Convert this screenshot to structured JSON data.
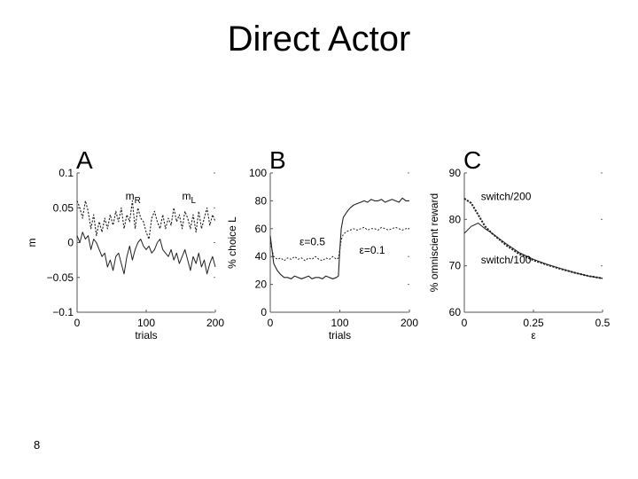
{
  "slide": {
    "title": "Direct Actor",
    "page_number": "8"
  },
  "chart_data": [
    {
      "type": "line",
      "panel": "A",
      "xlabel": "trials",
      "ylabel": "m",
      "xlim": [
        0,
        200
      ],
      "ylim": [
        -0.1,
        0.1
      ],
      "xticks": [
        0,
        100,
        200
      ],
      "xtick_labels": [
        "0",
        "100",
        "200"
      ],
      "yticks": [
        0.1,
        0.05,
        0,
        -0.05,
        -0.1
      ],
      "ytick_labels": [
        "0.1",
        "0.05",
        "0",
        "−0.05",
        "−0.1"
      ],
      "annotations": [
        {
          "text": "m",
          "sub": "R",
          "x": 70,
          "y": 0.062
        },
        {
          "text": "m",
          "sub": "L",
          "x": 152,
          "y": 0.062
        }
      ],
      "series": [
        {
          "x": [
            0,
            4,
            8,
            12,
            16,
            20,
            24,
            28,
            32,
            36,
            40,
            44,
            48,
            52,
            56,
            60,
            64,
            68,
            72,
            76,
            80,
            84,
            88,
            92,
            96,
            100,
            104,
            108,
            112,
            116,
            120,
            124,
            128,
            132,
            136,
            140,
            144,
            148,
            152,
            156,
            160,
            164,
            168,
            172,
            176,
            180,
            184,
            188,
            192,
            196,
            200
          ],
          "y": [
            0.06,
            0.05,
            0.035,
            0.06,
            0.045,
            0.02,
            0.04,
            0.01,
            0.03,
            0.015,
            0.035,
            0.02,
            0.04,
            0.025,
            0.045,
            0.03,
            0.05,
            0.02,
            0.04,
            0.03,
            0.06,
            0.02,
            0.05,
            0.035,
            0.03,
            0.015,
            0.005,
            0.035,
            0.045,
            0.03,
            0.02,
            0.04,
            0.02,
            0.035,
            0.025,
            0.05,
            0.03,
            0.04,
            0.02,
            0.045,
            0.035,
            0.02,
            0.04,
            0.015,
            0.045,
            0.02,
            0.035,
            0.05,
            0.025,
            0.04,
            0.03
          ]
        },
        {
          "x": [
            0,
            4,
            8,
            12,
            16,
            20,
            24,
            28,
            32,
            36,
            40,
            44,
            48,
            52,
            56,
            60,
            64,
            68,
            72,
            76,
            80,
            84,
            88,
            92,
            96,
            100,
            104,
            108,
            112,
            116,
            120,
            124,
            128,
            132,
            136,
            140,
            144,
            148,
            152,
            156,
            160,
            164,
            168,
            172,
            176,
            180,
            184,
            188,
            192,
            196,
            200
          ],
          "y": [
            0.01,
            0.0,
            0.015,
            0.005,
            0.01,
            -0.01,
            0.005,
            0.0,
            -0.01,
            -0.02,
            -0.015,
            -0.035,
            -0.025,
            -0.04,
            -0.02,
            -0.015,
            -0.03,
            -0.045,
            -0.02,
            -0.005,
            -0.025,
            -0.01,
            0.0,
            0.005,
            -0.005,
            -0.01,
            -0.005,
            -0.015,
            -0.01,
            0.0,
            0.005,
            -0.01,
            -0.015,
            -0.02,
            -0.01,
            -0.025,
            -0.015,
            -0.03,
            -0.02,
            -0.01,
            -0.025,
            -0.04,
            -0.02,
            -0.03,
            -0.015,
            -0.035,
            -0.025,
            -0.045,
            -0.03,
            -0.02,
            -0.035
          ]
        }
      ]
    },
    {
      "type": "line",
      "panel": "B",
      "xlabel": "trials",
      "ylabel": "% choice L",
      "xlim": [
        0,
        200
      ],
      "ylim": [
        0,
        100
      ],
      "xticks": [
        0,
        100,
        200
      ],
      "xtick_labels": [
        "0",
        "100",
        "200"
      ],
      "yticks": [
        100,
        80,
        60,
        40,
        20,
        0
      ],
      "ytick_labels": [
        "100",
        "80",
        "60",
        "40",
        "20",
        "0"
      ],
      "annotations": [
        {
          "text": "ε=0.5",
          "x": 42,
          "y": 48
        },
        {
          "text": "ε=0.1",
          "x": 128,
          "y": 42
        }
      ],
      "series": [
        {
          "x": [
            0,
            5,
            10,
            15,
            20,
            25,
            30,
            35,
            40,
            45,
            50,
            55,
            60,
            65,
            70,
            75,
            80,
            85,
            90,
            95,
            98,
            100,
            102,
            105,
            110,
            115,
            120,
            125,
            130,
            135,
            140,
            145,
            150,
            155,
            160,
            165,
            170,
            175,
            180,
            185,
            190,
            195,
            200
          ],
          "y": [
            55,
            35,
            30,
            27,
            25,
            25,
            24,
            26,
            25,
            24,
            25,
            26,
            24,
            25,
            25,
            24,
            26,
            25,
            24,
            25,
            26,
            45,
            60,
            68,
            72,
            75,
            77,
            78,
            79,
            80,
            79,
            81,
            80,
            80,
            81,
            79,
            80,
            81,
            80,
            79,
            82,
            80,
            80
          ]
        },
        {
          "x": [
            0,
            5,
            10,
            15,
            20,
            25,
            30,
            35,
            40,
            45,
            50,
            55,
            60,
            65,
            70,
            75,
            80,
            85,
            90,
            95,
            98,
            100,
            102,
            105,
            110,
            115,
            120,
            125,
            130,
            135,
            140,
            145,
            150,
            155,
            160,
            165,
            170,
            175,
            180,
            185,
            190,
            195,
            200
          ],
          "y": [
            50,
            40,
            38,
            39,
            37,
            39,
            38,
            40,
            38,
            39,
            37,
            39,
            38,
            40,
            38,
            37,
            39,
            38,
            40,
            38,
            39,
            45,
            52,
            56,
            58,
            59,
            60,
            59,
            60,
            61,
            59,
            60,
            60,
            59,
            61,
            60,
            59,
            60,
            61,
            60,
            59,
            60,
            60
          ]
        }
      ]
    },
    {
      "type": "line",
      "panel": "C",
      "xlabel": "ε",
      "ylabel": "% omniscient reward",
      "xlim": [
        0,
        0.5
      ],
      "ylim": [
        60,
        90
      ],
      "xticks": [
        0,
        0.25,
        0.5
      ],
      "xtick_labels": [
        "0",
        "0.25",
        "0.5"
      ],
      "yticks": [
        90,
        80,
        70,
        60
      ],
      "ytick_labels": [
        "90",
        "80",
        "70",
        "60"
      ],
      "annotations": [
        {
          "text": "switch/200",
          "x": 0.06,
          "y": 84.2
        },
        {
          "text": "switch/100",
          "x": 0.06,
          "y": 70.5
        }
      ],
      "series": [
        {
          "name": "switch/200",
          "x": [
            0,
            0.025,
            0.05,
            0.075,
            0.1,
            0.15,
            0.2,
            0.25,
            0.3,
            0.35,
            0.4,
            0.45,
            0.5
          ],
          "y": [
            84.5,
            83.5,
            81,
            78.5,
            77,
            74.5,
            72.5,
            71.2,
            70.2,
            69.3,
            68.5,
            67.8,
            67.3
          ]
        },
        {
          "name": "switch/100",
          "x": [
            0,
            0.025,
            0.05,
            0.075,
            0.1,
            0.15,
            0.2,
            0.25,
            0.3,
            0.35,
            0.4,
            0.45,
            0.5
          ],
          "y": [
            77,
            78.5,
            79.2,
            78,
            77,
            74.8,
            72.8,
            71.4,
            70.3,
            69.4,
            68.5,
            67.8,
            67.3
          ]
        }
      ]
    }
  ]
}
